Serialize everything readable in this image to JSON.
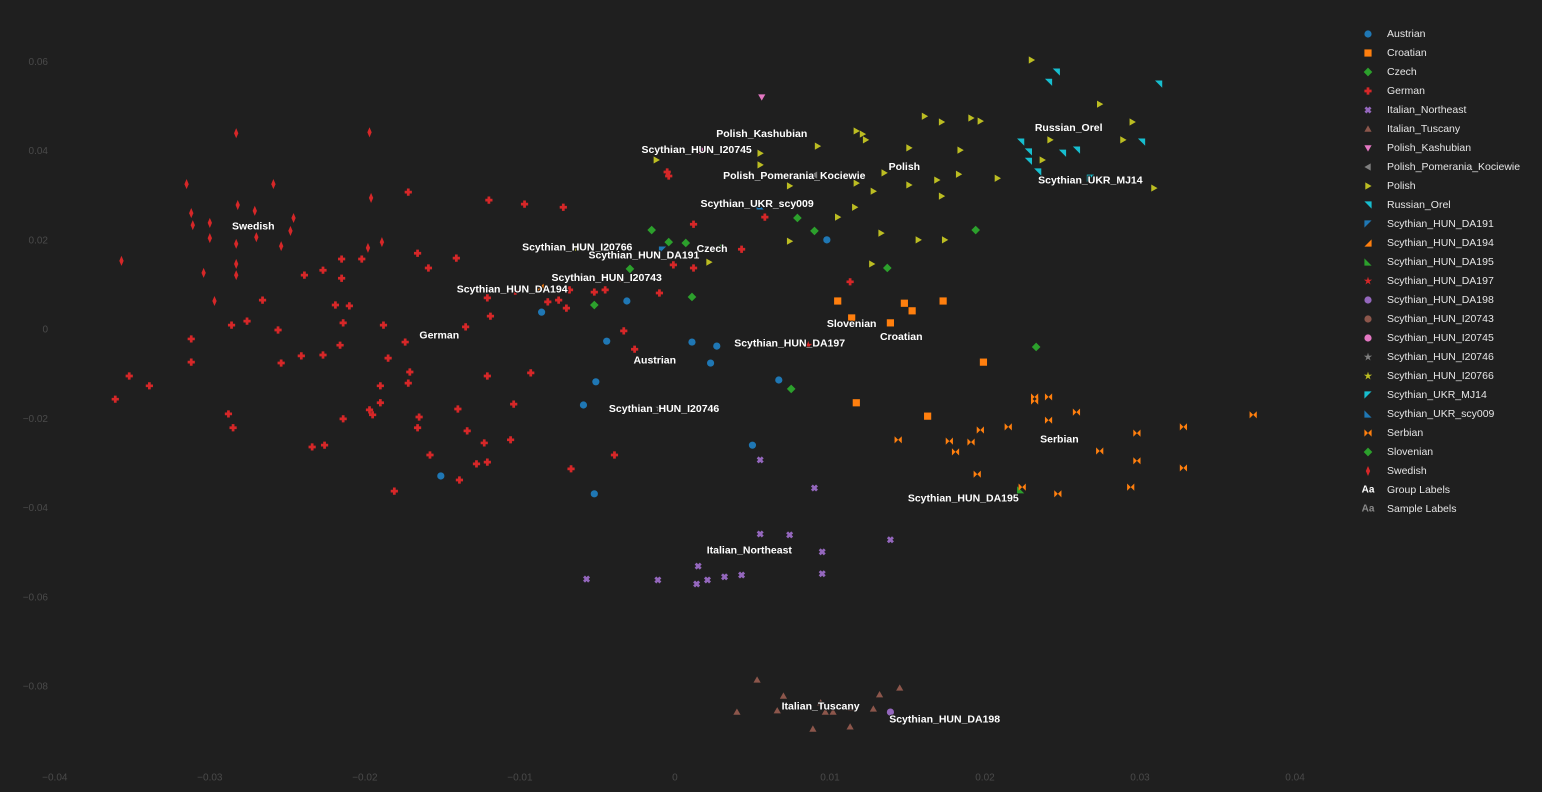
{
  "chart_data": {
    "type": "scatter",
    "xlim": [
      -0.0416,
      0.0429
    ],
    "ylim": [
      -0.0997,
      0.0717
    ],
    "grid": false,
    "xticks": [
      {
        "value": -0.04,
        "label": "−0.04"
      },
      {
        "value": -0.03,
        "label": "−0.03"
      },
      {
        "value": -0.02,
        "label": "−0.02"
      },
      {
        "value": -0.01,
        "label": "−0.01"
      },
      0,
      0.01,
      0.02,
      0.03,
      0.04
    ],
    "yticks": [
      0.06,
      0.04,
      0.02,
      0,
      {
        "value": -0.02,
        "label": "−0.02"
      },
      {
        "value": -0.04,
        "label": "−0.04"
      },
      {
        "value": -0.06,
        "label": "−0.06"
      },
      {
        "value": -0.08,
        "label": "−0.08"
      }
    ],
    "series": [
      {
        "name": "Austrian",
        "color": "#1f77b4",
        "symbol": "circle",
        "x": [
          -0.0086,
          -0.0044,
          -0.0031,
          -0.0051,
          -0.0059,
          -0.0052,
          -0.0151,
          0.0011,
          0.0023,
          0.0027,
          0.0067,
          0.005,
          0.0098
        ],
        "y": [
          0.004,
          -0.0025,
          0.0065,
          -0.0116,
          -0.0168,
          -0.0367,
          -0.0327,
          -0.0027,
          -0.0074,
          -0.0036,
          -0.0112,
          -0.0258,
          0.0202
        ]
      },
      {
        "name": "Croatian",
        "color": "#ff7f0e",
        "symbol": "square",
        "x": [
          0.0105,
          0.0114,
          0.0139,
          0.0148,
          0.0153,
          0.0173,
          0.0117,
          0.0163,
          0.0199
        ],
        "y": [
          0.0065,
          0.0027,
          0.0016,
          0.006,
          0.0043,
          0.0065,
          -0.0163,
          -0.0193,
          -0.0072
        ]
      },
      {
        "name": "Czech",
        "color": "#2ca02c",
        "symbol": "diamond",
        "x": [
          -0.0015,
          -0.0004,
          0.0007,
          0.003,
          0.0079,
          0.009,
          -0.0029,
          -0.0052,
          0.0194,
          0.0137
        ],
        "y": [
          0.0224,
          0.0197,
          0.0195,
          0.0184,
          0.0251,
          0.0222,
          0.0137,
          0.0056,
          0.0224,
          0.0139
        ]
      },
      {
        "name": "German",
        "color": "#d62728",
        "symbol": "cross",
        "x": [
          -0.0352,
          -0.0339,
          -0.0361,
          -0.0312,
          -0.0312,
          -0.0286,
          -0.0266,
          -0.0276,
          -0.0256,
          -0.0241,
          -0.0227,
          -0.0254,
          -0.0216,
          -0.0214,
          -0.021,
          -0.0219,
          -0.0188,
          -0.0185,
          -0.019,
          -0.019,
          -0.0197,
          -0.0214,
          -0.0195,
          -0.0171,
          -0.0172,
          -0.0174,
          -0.0165,
          -0.0166,
          -0.0158,
          -0.014,
          -0.0134,
          -0.0128,
          -0.0121,
          -0.0123,
          -0.0106,
          -0.0104,
          -0.0121,
          -0.0093,
          -0.0135,
          -0.0119,
          -0.0121,
          -0.0103,
          -0.0082,
          -0.007,
          -0.0068,
          -0.0075,
          -0.0052,
          -0.0045,
          -0.0033,
          -0.0026,
          -0.0039,
          -0.0067,
          -0.0181,
          -0.0139,
          -0.0159,
          -0.0141,
          -0.0166,
          -0.0227,
          -0.0215,
          -0.0202,
          -0.0215,
          -0.0239,
          -0.012,
          -0.0097,
          -0.0072,
          -0.0172,
          -0.0005,
          -0.0004,
          0.0012,
          0.0043,
          0.0058,
          -0.0001,
          -0.001,
          0.0012,
          0.0113,
          -0.0285,
          -0.0288,
          -0.0226,
          -0.0234
        ],
        "y": [
          -0.0103,
          -0.0125,
          -0.0155,
          -0.002,
          -0.0072,
          0.0011,
          0.0067,
          0.002,
          0,
          -0.0058,
          -0.0056,
          -0.0074,
          -0.0034,
          0.0016,
          0.0054,
          0.0056,
          0.0011,
          -0.0063,
          -0.0125,
          -0.0163,
          -0.0179,
          -0.0199,
          -0.019,
          -0.0094,
          -0.0119,
          -0.0027,
          -0.0195,
          -0.0219,
          -0.028,
          -0.0177,
          -0.0226,
          -0.03,
          -0.0296,
          -0.0253,
          -0.0246,
          -0.0166,
          -0.0103,
          -0.0096,
          0.0007,
          0.0031,
          0.0072,
          0.0087,
          0.0063,
          0.0049,
          0.009,
          0.0067,
          0.0085,
          0.009,
          -0.0002,
          -0.0043,
          -0.028,
          -0.0311,
          -0.0361,
          -0.0336,
          0.0139,
          0.0161,
          0.0172,
          0.0134,
          0.0159,
          0.0159,
          0.0116,
          0.0123,
          0.0291,
          0.0282,
          0.0275,
          0.0309,
          0.0354,
          0.0345,
          0.0237,
          0.0181,
          0.0253,
          0.0146,
          0.0083,
          0.0139,
          0.0108,
          -0.0219,
          -0.0188,
          -0.0258,
          -0.0262
        ]
      },
      {
        "name": "Italian_Northeast",
        "color": "#9467bd",
        "symbol": "x",
        "x": [
          -0.0057,
          -0.0011,
          0.0014,
          0.0021,
          0.0032,
          0.0043,
          0.0015,
          0.0055,
          0.0074,
          0.0095,
          0.0095,
          0.0139,
          0.009,
          0.0055
        ],
        "y": [
          -0.0558,
          -0.056,
          -0.0569,
          -0.056,
          -0.0553,
          -0.0549,
          -0.0529,
          -0.0457,
          -0.0459,
          -0.0497,
          -0.0546,
          -0.047,
          -0.0354,
          -0.0291
        ]
      },
      {
        "name": "Italian_Tuscany",
        "color": "#8c564b",
        "symbol": "triangle-up",
        "x": [
          0.0053,
          0.007,
          0.004,
          0.0066,
          0.0089,
          0.0097,
          0.0102,
          0.0113,
          0.0114,
          0.0128,
          0.0132,
          0.0145,
          0.0094
        ],
        "y": [
          -0.0784,
          -0.082,
          -0.0856,
          -0.0853,
          -0.0894,
          -0.0856,
          -0.0856,
          -0.0889,
          -0.0847,
          -0.0849,
          -0.0817,
          -0.0802,
          -0.0835
        ]
      },
      {
        "name": "Polish_Kashubian",
        "color": "#e377c2",
        "symbol": "triangle-down",
        "x": [
          0.0056
        ],
        "y": [
          0.0522
        ]
      },
      {
        "name": "Polish_Pomerania_Kociewie",
        "color": "#7f7f7f",
        "symbol": "triangle-left",
        "x": [
          0.009
        ],
        "y": [
          0.0347
        ]
      },
      {
        "name": "Polish",
        "color": "#bcbd22",
        "symbol": "triangle-right",
        "x": [
          0.023,
          0.0161,
          0.0172,
          0.0191,
          0.0197,
          0.0117,
          0.0121,
          0.0123,
          0.0151,
          0.0184,
          0.0169,
          0.0183,
          0.0208,
          0.0151,
          0.0135,
          0.0117,
          0.0128,
          0.0172,
          0.0116,
          0.0105,
          0.0074,
          0.0074,
          0.0133,
          0.0157,
          0.0174,
          0.0127,
          0.0092,
          0.0055,
          0.0055,
          0.0274,
          0.0295,
          0.0309,
          0.0289,
          0.0242,
          0.0237,
          -0.0012,
          0.0022
        ],
        "y": [
          0.0605,
          0.0479,
          0.0466,
          0.0475,
          0.0468,
          0.0446,
          0.0439,
          0.0426,
          0.0408,
          0.0403,
          0.0336,
          0.0349,
          0.034,
          0.0325,
          0.0352,
          0.0329,
          0.0311,
          0.03,
          0.0275,
          0.0253,
          0.0323,
          0.0199,
          0.0217,
          0.0202,
          0.0202,
          0.0148,
          0.0412,
          0.037,
          0.0396,
          0.0506,
          0.0466,
          0.0318,
          0.0426,
          0.0426,
          0.0381,
          0.0381,
          0.0152
        ]
      },
      {
        "name": "Russian_Orel",
        "color": "#17becf",
        "symbol": "triangle-ne",
        "x": [
          0.0246,
          0.0241,
          0.0312,
          0.0223,
          0.0228,
          0.0228,
          0.0234,
          0.025,
          0.0259,
          0.0301
        ],
        "y": [
          0.0578,
          0.0555,
          0.0551,
          0.0421,
          0.0399,
          0.0378,
          0.0354,
          0.0396,
          0.0403,
          0.0421
        ]
      },
      {
        "name": "Scythian_HUN_DA191",
        "color": "#1f77b4",
        "symbol": "triangle-nw",
        "x": [
          -0.0008
        ],
        "y": [
          0.0179
        ]
      },
      {
        "name": "Scythian_HUN_DA194",
        "color": "#ff7f0e",
        "symbol": "triangle-se",
        "x": [
          -0.0087
        ],
        "y": [
          0.0096
        ]
      },
      {
        "name": "Scythian_HUN_DA195",
        "color": "#2ca02c",
        "symbol": "triangle-sw",
        "x": [
          0.0223
        ],
        "y": [
          -0.0358
        ]
      },
      {
        "name": "Scythian_HUN_DA197",
        "color": "#d62728",
        "symbol": "star",
        "x": [
          0.0086
        ],
        "y": [
          -0.0034
        ]
      },
      {
        "name": "Scythian_HUN_DA198",
        "color": "#9467bd",
        "symbol": "circle",
        "x": [
          0.0139
        ],
        "y": [
          -0.0856
        ]
      },
      {
        "name": "Scythian_HUN_I20743",
        "color": "#8c564b",
        "symbol": "circle",
        "x": [
          -0.0035
        ],
        "y": [
          0.0116
        ]
      },
      {
        "name": "Scythian_HUN_I20745",
        "color": "#e377c2",
        "symbol": "circle",
        "x": [
          0.0016
        ],
        "y": [
          0.0403
        ]
      },
      {
        "name": "Scythian_HUN_I20746",
        "color": "#7f7f7f",
        "symbol": "star",
        "x": [
          -0.001
        ],
        "y": [
          -0.0175
        ]
      },
      {
        "name": "Scythian_HUN_I20766",
        "color": "#bcbd22",
        "symbol": "star",
        "x": [
          -0.0063
        ],
        "y": [
          0.0184
        ]
      },
      {
        "name": "Scythian_UKR_MJ14",
        "color": "#17becf",
        "symbol": "triangle-nw",
        "x": [
          0.0268
        ],
        "y": [
          0.034
        ]
      },
      {
        "name": "Scythian_UKR_scy009",
        "color": "#1f77b4",
        "symbol": "triangle-sw",
        "x": [
          0.0055
        ],
        "y": [
          0.0278
        ]
      },
      {
        "name": "Serbian",
        "color": "#ff7f0e",
        "symbol": "bowtie",
        "x": [
          0.0144,
          0.0177,
          0.0181,
          0.0191,
          0.0197,
          0.0215,
          0.0232,
          0.0232,
          0.0241,
          0.0241,
          0.0259,
          0.0274,
          0.0298,
          0.0328,
          0.0328,
          0.0294,
          0.0298,
          0.0373,
          0.0224,
          0.0247,
          0.0195
        ],
        "y": [
          -0.0246,
          -0.0249,
          -0.0273,
          -0.0251,
          -0.0224,
          -0.0217,
          -0.015,
          -0.0159,
          -0.0202,
          -0.015,
          -0.0184,
          -0.0271,
          -0.0231,
          -0.0217,
          -0.0309,
          -0.0352,
          -0.0293,
          -0.019,
          -0.0352,
          -0.0367,
          -0.0323
        ]
      },
      {
        "name": "Slovenian",
        "color": "#2ca02c",
        "symbol": "diamond-cross",
        "x": [
          0.0011,
          0.0075,
          0.0233
        ],
        "y": [
          0.0074,
          -0.0132,
          -0.0038
        ]
      },
      {
        "name": "Swedish",
        "color": "#d62728",
        "symbol": "diamond-tall",
        "x": [
          -0.0283,
          -0.0315,
          -0.0312,
          -0.0311,
          -0.03,
          -0.03,
          -0.0282,
          -0.0259,
          -0.0254,
          -0.027,
          -0.0248,
          -0.0283,
          -0.0283,
          -0.0283,
          -0.0304,
          -0.0297,
          -0.0357,
          -0.0197,
          -0.0196,
          -0.0189,
          -0.0198,
          -0.0271,
          -0.0246
        ],
        "y": [
          0.0441,
          0.0327,
          0.0262,
          0.0235,
          0.024,
          0.0206,
          0.028,
          0.0327,
          0.0188,
          0.0208,
          0.0222,
          0.0193,
          0.0148,
          0.0123,
          0.0128,
          0.0065,
          0.0155,
          0.0443,
          0.0296,
          0.0197,
          0.0184,
          0.0267,
          0.0251
        ]
      }
    ],
    "label_items": [
      {
        "icon": "Aa",
        "name": "Group Labels",
        "color": "#ffffff"
      },
      {
        "icon": "Aa",
        "name": "Sample Labels",
        "color": "#8a8a8a"
      }
    ],
    "annotations": [
      {
        "text": "Swedish",
        "x": -0.0272,
        "y": 0.0231
      },
      {
        "text": "German",
        "x": -0.0152,
        "y": -0.0013
      },
      {
        "text": "Austrian",
        "x": -0.0013,
        "y": -0.0069
      },
      {
        "text": "Czech",
        "x": 0.0024,
        "y": 0.0181
      },
      {
        "text": "Polish_Kashubian",
        "x": 0.0056,
        "y": 0.0439
      },
      {
        "text": "Polish_Pomerania_Kociewie",
        "x": 0.0077,
        "y": 0.0345
      },
      {
        "text": "Polish",
        "x": 0.0148,
        "y": 0.0365
      },
      {
        "text": "Russian_Orel",
        "x": 0.0254,
        "y": 0.0452
      },
      {
        "text": "Slovenian",
        "x": 0.0114,
        "y": 0.0013
      },
      {
        "text": "Croatian",
        "x": 0.0146,
        "y": -0.0016
      },
      {
        "text": "Serbian",
        "x": 0.0248,
        "y": -0.0246
      },
      {
        "text": "Italian_Northeast",
        "x": 0.0048,
        "y": -0.0495
      },
      {
        "text": "Italian_Tuscany",
        "x": 0.0094,
        "y": -0.0844
      },
      {
        "text": "Scythian_HUN_I20745",
        "x": 0.0014,
        "y": 0.0403
      },
      {
        "text": "Scythian_HUN_I20766",
        "x": -0.0063,
        "y": 0.0184
      },
      {
        "text": "Scythian_HUN_DA191",
        "x": -0.002,
        "y": 0.0166
      },
      {
        "text": "Scythian_HUN_I20743",
        "x": -0.0044,
        "y": 0.0116
      },
      {
        "text": "Scythian_HUN_DA194",
        "x": -0.0105,
        "y": 0.009
      },
      {
        "text": "Scythian_UKR_scy009",
        "x": 0.0053,
        "y": 0.0282
      },
      {
        "text": "Scythian_HUN_DA197",
        "x": 0.0074,
        "y": -0.0031
      },
      {
        "text": "Scythian_HUN_I20746",
        "x": -0.0007,
        "y": -0.0177
      },
      {
        "text": "Scythian_UKR_MJ14",
        "x": 0.0268,
        "y": 0.0334
      },
      {
        "text": "Scythian_HUN_DA195",
        "x": 0.0186,
        "y": -0.0378
      },
      {
        "text": "Scythian_HUN_DA198",
        "x": 0.0174,
        "y": -0.0873
      }
    ]
  }
}
